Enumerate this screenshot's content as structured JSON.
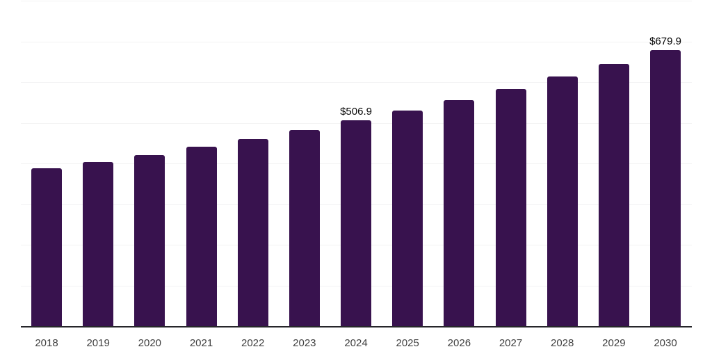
{
  "chart_data": {
    "type": "bar",
    "title": "",
    "xlabel": "",
    "ylabel": "",
    "categories": [
      "2018",
      "2019",
      "2020",
      "2021",
      "2022",
      "2023",
      "2024",
      "2025",
      "2026",
      "2027",
      "2028",
      "2029",
      "2030"
    ],
    "values": [
      389.5,
      404.5,
      422.5,
      443.3,
      462.0,
      484.0,
      506.9,
      531.5,
      557.5,
      583.8,
      614.6,
      646.9,
      679.9
    ],
    "data_labels": {
      "2024": "$506.9",
      "2030": "$679.9"
    },
    "value_prefix": "$",
    "ylim": [
      0,
      800
    ],
    "gridline_interval": 100,
    "grid": "horizontal-only",
    "legend": "none",
    "colors": {
      "bar": "#38124E",
      "gridline": "#F2F2F3",
      "axis_line": "#26262A",
      "tick_label": "#3F3F3F",
      "data_label": "#060606",
      "background": "#FFFFFF"
    }
  }
}
